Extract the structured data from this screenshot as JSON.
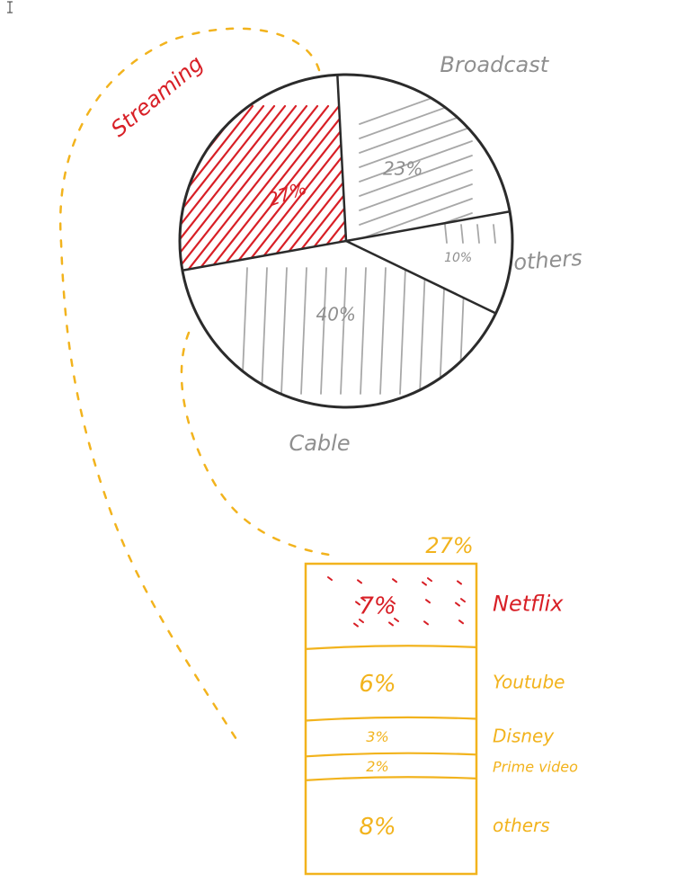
{
  "colors": {
    "ink": "#2b2b2b",
    "gray": "#a8a8a8",
    "gray_dark": "#8f8f8f",
    "red": "#d81f26",
    "orange": "#f2b31d",
    "background": "#ffffff"
  },
  "chart_data": [
    {
      "type": "pie",
      "title": "",
      "slices": [
        {
          "label": "Broadcast",
          "value": 23,
          "value_label": "23%",
          "color": "#a8a8a8"
        },
        {
          "label": "others",
          "value": 10,
          "value_label": "10%",
          "color": "#a8a8a8"
        },
        {
          "label": "Cable",
          "value": 40,
          "value_label": "40%",
          "color": "#a8a8a8"
        },
        {
          "label": "Streaming",
          "value": 27,
          "value_label": "27%",
          "color": "#d81f26"
        }
      ]
    },
    {
      "type": "bar",
      "subtype": "stacked",
      "title": "27%",
      "parent": "Streaming",
      "segments": [
        {
          "label": "Netflix",
          "value": 7,
          "value_label": "7%",
          "color": "#d81f26"
        },
        {
          "label": "Youtube",
          "value": 6,
          "value_label": "6%",
          "color": "#f2b31d"
        },
        {
          "label": "Disney",
          "value": 3,
          "value_label": "3%",
          "color": "#f2b31d"
        },
        {
          "label": "Prime video",
          "value": 2,
          "value_label": "2%",
          "color": "#f2b31d"
        },
        {
          "label": "others",
          "value": 8,
          "value_label": "8%",
          "color": "#f2b31d"
        }
      ]
    }
  ]
}
